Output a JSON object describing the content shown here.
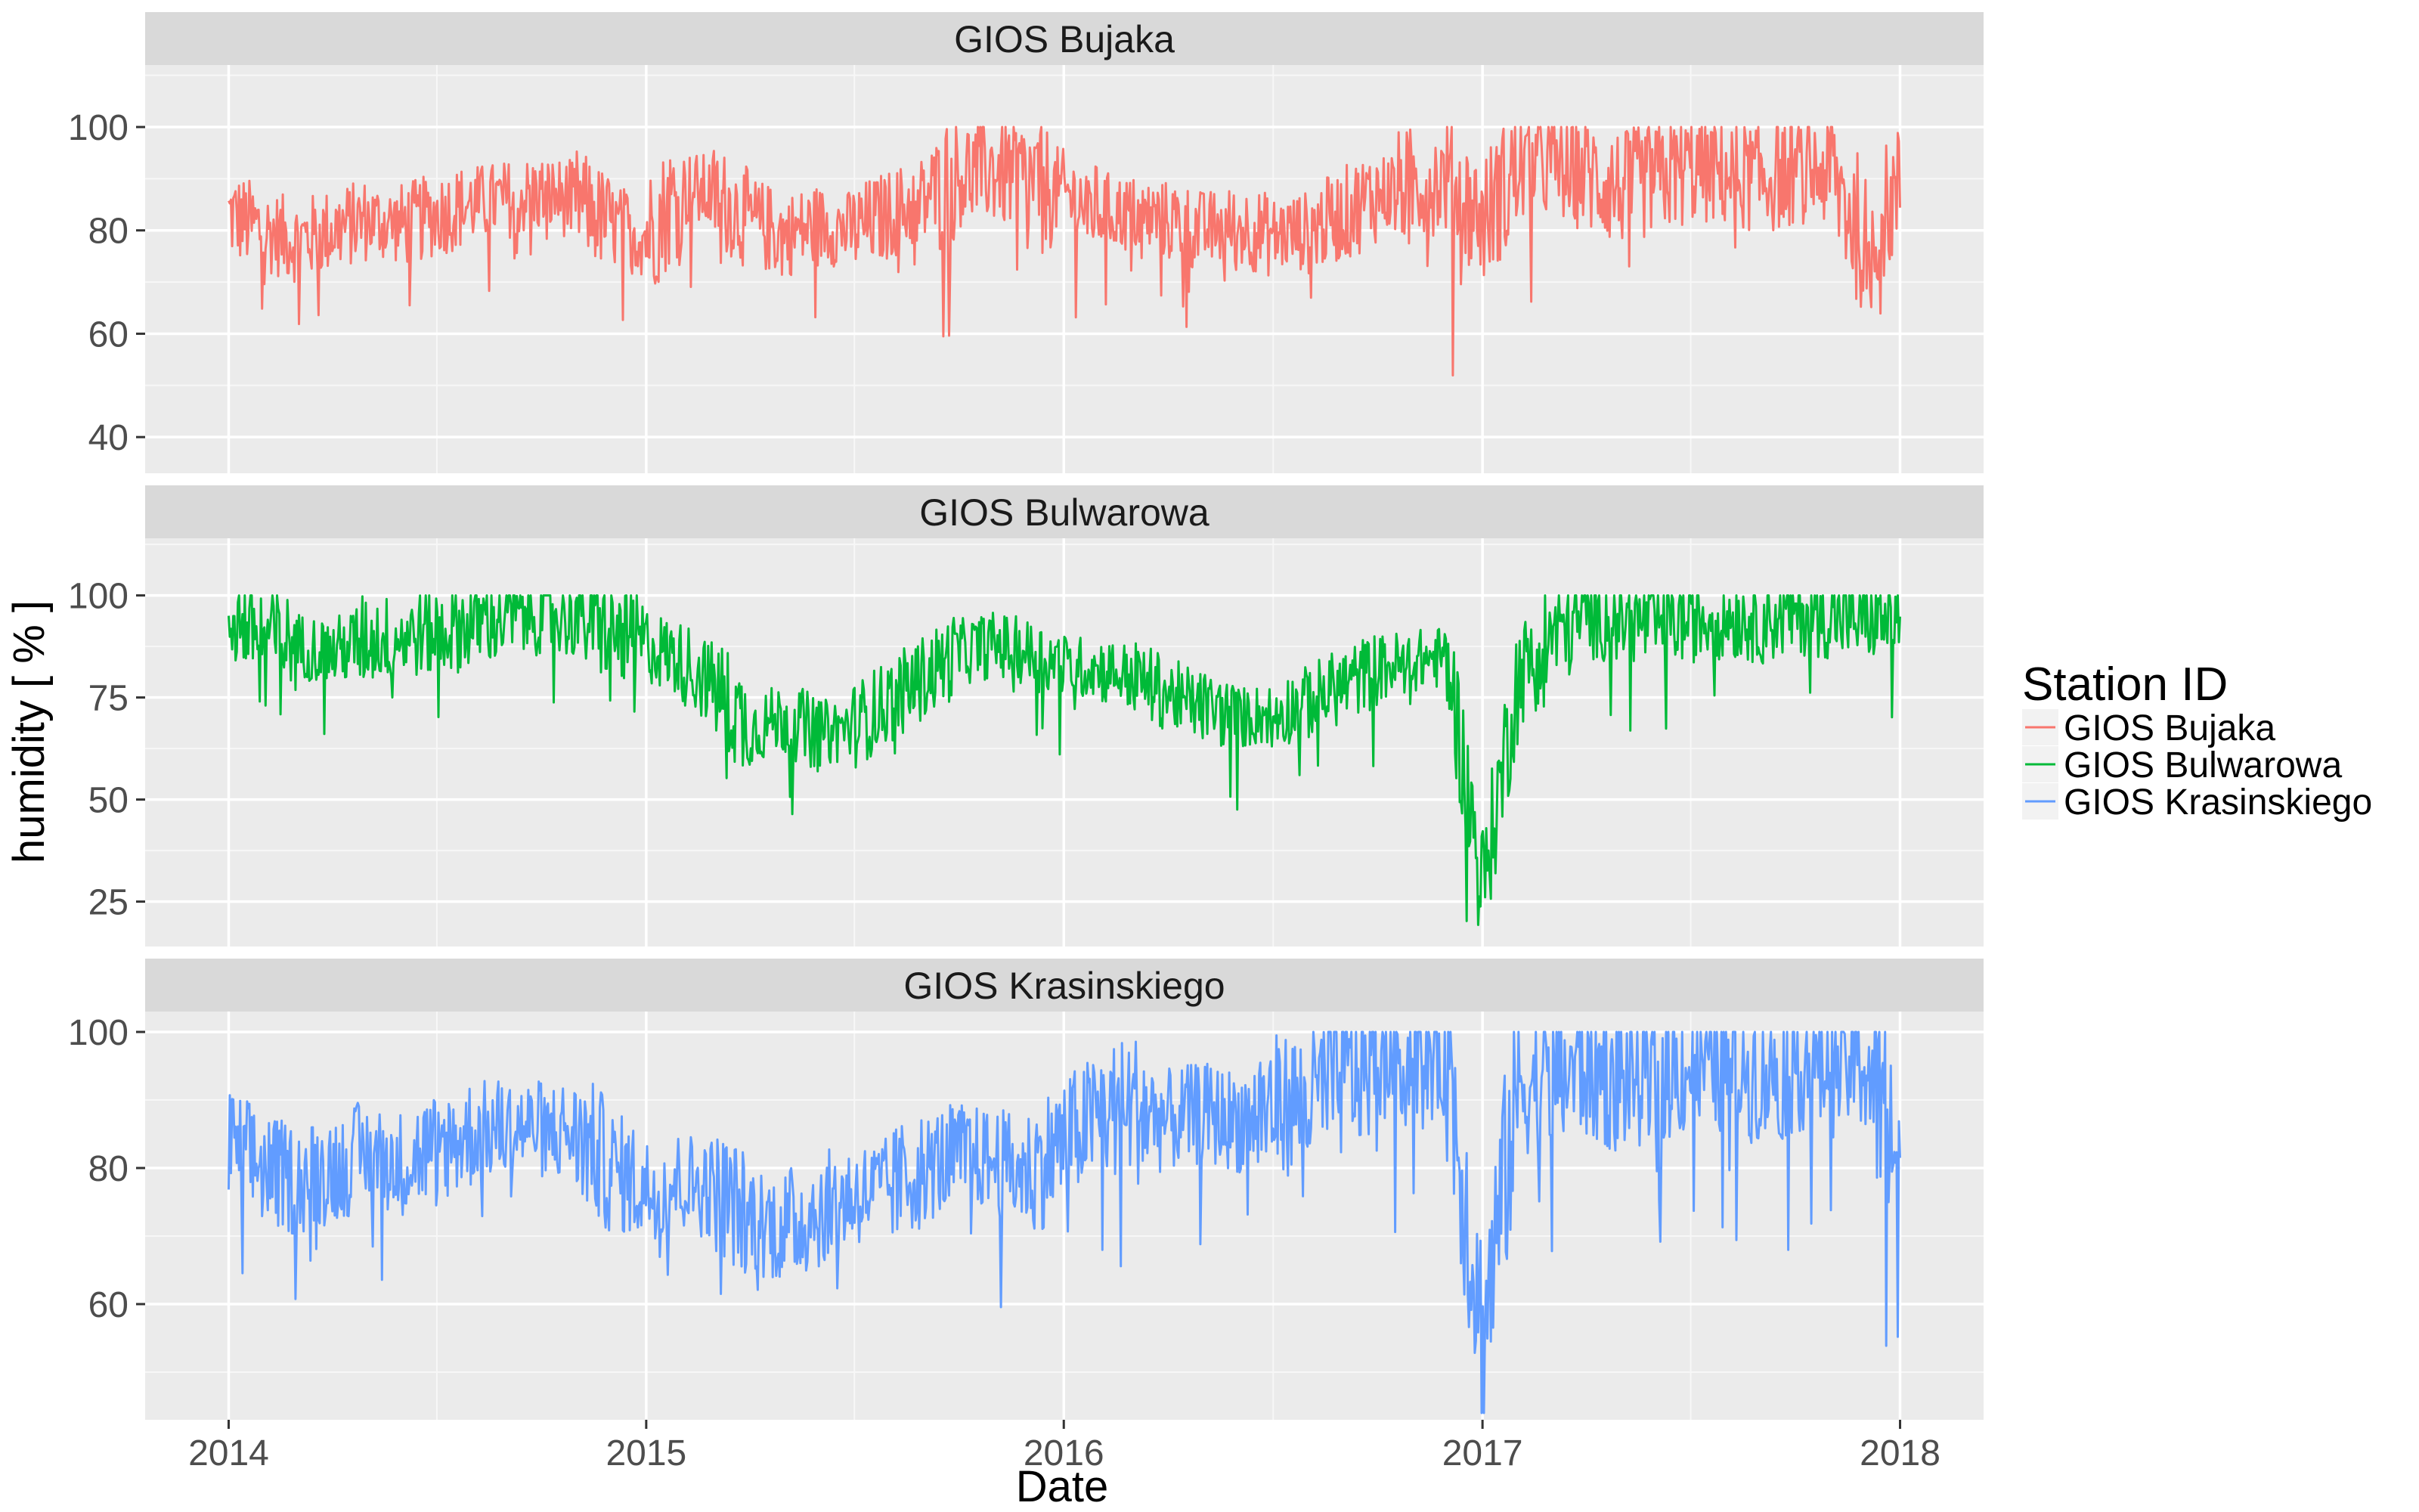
{
  "chart_data": {
    "type": "line",
    "layout": "faceted vertically, shared x axis",
    "xlabel": "Date",
    "ylabel": "humidity [ % ]",
    "x_ticks": [
      "2014",
      "2015",
      "2016",
      "2017",
      "2018"
    ],
    "x_range": [
      "2013-10-20",
      "2018-03-15"
    ],
    "grid": true,
    "legend": {
      "title": "Station ID",
      "position": "right",
      "entries": [
        "GIOS Bujaka",
        "GIOS Bulwarowa",
        "GIOS Krasinskiego"
      ]
    },
    "facets": [
      {
        "strip": "GIOS Bujaka",
        "color": "#F8766D",
        "y_ticks": [
          40,
          60,
          80,
          100
        ],
        "y_range": [
          33,
          112
        ],
        "series": {
          "name": "GIOS Bujaka",
          "x": [
            "2014-01-01",
            "2014-02-01",
            "2014-03-01",
            "2014-04-01",
            "2014-05-01",
            "2014-06-01",
            "2014-07-01",
            "2014-08-01",
            "2014-09-01",
            "2014-10-01",
            "2014-11-01",
            "2014-12-01",
            "2015-01-01",
            "2015-02-01",
            "2015-03-01",
            "2015-04-01",
            "2015-05-01",
            "2015-06-01",
            "2015-07-01",
            "2015-08-01",
            "2015-09-01",
            "2015-10-01",
            "2015-11-01",
            "2015-12-01",
            "2016-01-01",
            "2016-02-01",
            "2016-03-01",
            "2016-04-01",
            "2016-05-01",
            "2016-06-01",
            "2016-07-01",
            "2016-08-01",
            "2016-09-01",
            "2016-10-01",
            "2016-11-01",
            "2016-12-01",
            "2017-01-01",
            "2017-02-01",
            "2017-03-01",
            "2017-04-01",
            "2017-05-01",
            "2017-06-01",
            "2017-07-01",
            "2017-08-01",
            "2017-09-01",
            "2017-10-01",
            "2017-11-01",
            "2017-12-01",
            "2018-01-01"
          ],
          "y": [
            83,
            80,
            78,
            80,
            82,
            81,
            83,
            85,
            86,
            87,
            86,
            81,
            79,
            88,
            87,
            82,
            79,
            81,
            80,
            83,
            86,
            91,
            92,
            90,
            87,
            84,
            83,
            82,
            80,
            81,
            79,
            80,
            83,
            87,
            89,
            90,
            82,
            92,
            93,
            91,
            88,
            90,
            92,
            91,
            90,
            92,
            91,
            78,
            88
          ]
        }
      },
      {
        "strip": "GIOS Bulwarowa",
        "color": "#00BA38",
        "y_ticks": [
          25,
          50,
          75,
          100
        ],
        "y_range": [
          14,
          114
        ],
        "series": {
          "name": "GIOS Bulwarowa",
          "x": [
            "2014-01-01",
            "2014-02-01",
            "2014-03-01",
            "2014-04-01",
            "2014-05-01",
            "2014-06-01",
            "2014-07-01",
            "2014-08-01",
            "2014-09-01",
            "2014-10-01",
            "2014-11-01",
            "2014-12-01",
            "2015-01-01",
            "2015-02-01",
            "2015-03-01",
            "2015-04-01",
            "2015-05-01",
            "2015-06-01",
            "2015-07-01",
            "2015-08-01",
            "2015-09-01",
            "2015-10-01",
            "2015-11-01",
            "2015-12-01",
            "2016-01-01",
            "2016-02-01",
            "2016-03-01",
            "2016-04-01",
            "2016-05-01",
            "2016-06-01",
            "2016-07-01",
            "2016-08-01",
            "2016-09-01",
            "2016-10-01",
            "2016-11-01",
            "2016-12-01",
            "2017-01-01",
            "2017-02-01",
            "2017-03-01",
            "2017-04-01",
            "2017-05-01",
            "2017-06-01",
            "2017-07-01",
            "2017-08-01",
            "2017-09-01",
            "2017-10-01",
            "2017-11-01",
            "2017-12-01",
            "2018-01-01"
          ],
          "y": [
            95,
            91,
            88,
            86,
            89,
            90,
            91,
            93,
            95,
            96,
            95,
            91,
            88,
            84,
            78,
            67,
            70,
            66,
            68,
            74,
            80,
            86,
            88,
            86,
            83,
            82,
            80,
            76,
            73,
            70,
            71,
            74,
            78,
            82,
            84,
            85,
            28,
            80,
            90,
            95,
            94,
            93,
            94,
            95,
            94,
            96,
            95,
            94,
            94
          ]
        }
      },
      {
        "strip": "GIOS Krasinskiego",
        "color": "#619CFF",
        "y_ticks": [
          60,
          80,
          100
        ],
        "y_range": [
          43,
          103
        ],
        "series": {
          "name": "GIOS Krasinskiego",
          "x": [
            "2014-01-01",
            "2014-02-01",
            "2014-03-01",
            "2014-04-01",
            "2014-05-01",
            "2014-06-01",
            "2014-07-01",
            "2014-08-01",
            "2014-09-01",
            "2014-10-01",
            "2014-11-01",
            "2014-12-01",
            "2015-01-01",
            "2015-02-01",
            "2015-03-01",
            "2015-04-01",
            "2015-05-01",
            "2015-06-01",
            "2015-07-01",
            "2015-08-01",
            "2015-09-01",
            "2015-10-01",
            "2015-11-01",
            "2015-12-01",
            "2016-01-01",
            "2016-02-01",
            "2016-03-01",
            "2016-04-01",
            "2016-05-01",
            "2016-06-01",
            "2016-07-01",
            "2016-08-01",
            "2016-09-01",
            "2016-10-01",
            "2016-11-01",
            "2016-12-01",
            "2017-01-01",
            "2017-02-01",
            "2017-03-01",
            "2017-04-01",
            "2017-05-01",
            "2017-06-01",
            "2017-07-01",
            "2017-08-01",
            "2017-09-01",
            "2017-10-01",
            "2017-11-01",
            "2017-12-01",
            "2018-01-01"
          ],
          "y": [
            83,
            80,
            78,
            80,
            82,
            81,
            83,
            85,
            86,
            86,
            85,
            80,
            77,
            78,
            77,
            73,
            71,
            74,
            76,
            77,
            80,
            82,
            81,
            79,
            84,
            88,
            89,
            87,
            88,
            87,
            89,
            90,
            93,
            97,
            98,
            97,
            55,
            92,
            93,
            95,
            93,
            94,
            95,
            95,
            94,
            96,
            95,
            96,
            82
          ]
        }
      }
    ]
  }
}
